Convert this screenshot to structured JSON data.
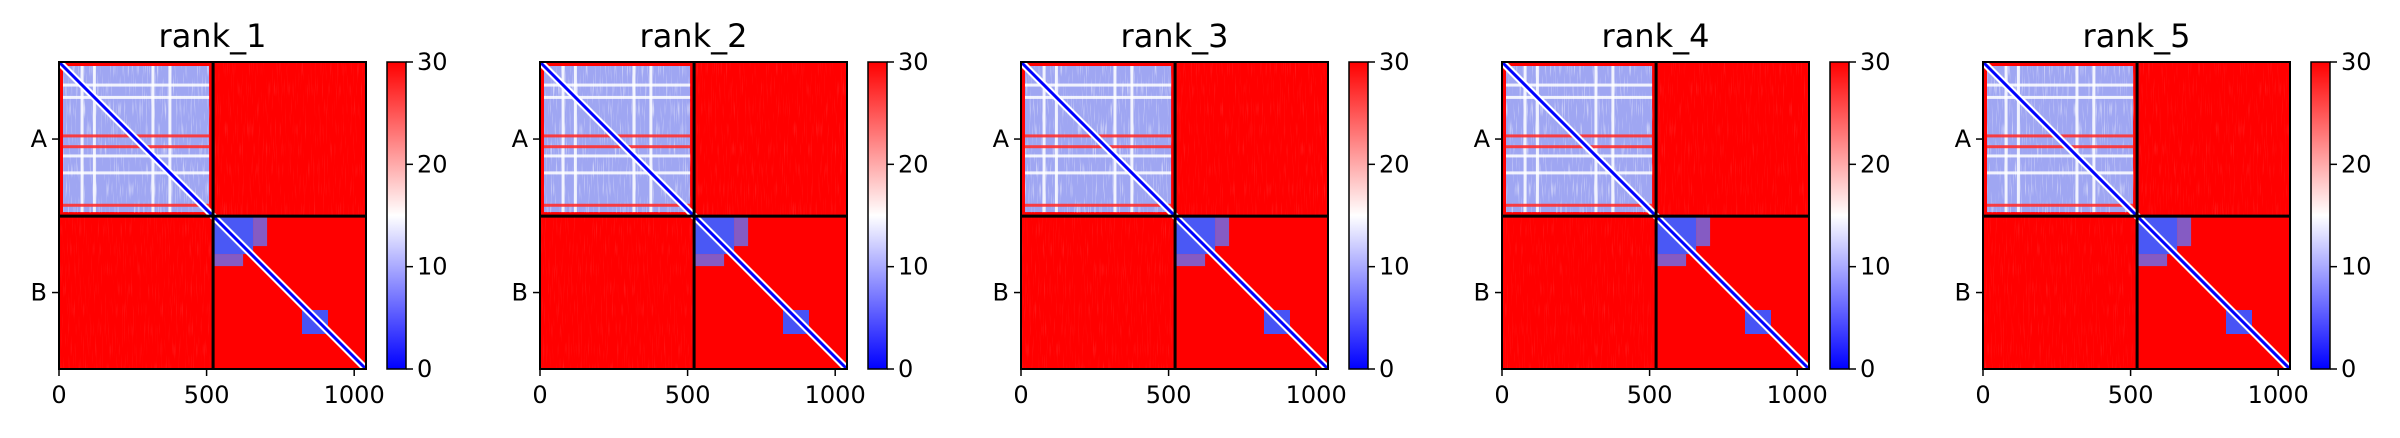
{
  "chart_data": [
    {
      "type": "heatmap",
      "title": "rank_1",
      "x_ticks": [
        0,
        500,
        1000
      ],
      "y_tick_labels": [
        "A",
        "B"
      ],
      "chain_lengths": [
        522,
        518
      ],
      "colorbar": {
        "ticks": [
          0,
          10,
          20,
          30
        ],
        "range": [
          0,
          30
        ],
        "colormap": [
          "#0000ff",
          "#ffffff",
          "#ff0000"
        ]
      },
      "grid": false
    },
    {
      "type": "heatmap",
      "title": "rank_2",
      "x_ticks": [
        0,
        500,
        1000
      ],
      "y_tick_labels": [
        "A",
        "B"
      ],
      "chain_lengths": [
        522,
        518
      ],
      "colorbar": {
        "ticks": [
          0,
          10,
          20,
          30
        ],
        "range": [
          0,
          30
        ],
        "colormap": [
          "#0000ff",
          "#ffffff",
          "#ff0000"
        ]
      },
      "grid": false
    },
    {
      "type": "heatmap",
      "title": "rank_3",
      "x_ticks": [
        0,
        500,
        1000
      ],
      "y_tick_labels": [
        "A",
        "B"
      ],
      "chain_lengths": [
        522,
        518
      ],
      "colorbar": {
        "ticks": [
          0,
          10,
          20,
          30
        ],
        "range": [
          0,
          30
        ],
        "colormap": [
          "#0000ff",
          "#ffffff",
          "#ff0000"
        ]
      },
      "grid": false
    },
    {
      "type": "heatmap",
      "title": "rank_4",
      "x_ticks": [
        0,
        500,
        1000
      ],
      "y_tick_labels": [
        "A",
        "B"
      ],
      "chain_lengths": [
        522,
        518
      ],
      "colorbar": {
        "ticks": [
          0,
          10,
          20,
          30
        ],
        "range": [
          0,
          30
        ],
        "colormap": [
          "#0000ff",
          "#ffffff",
          "#ff0000"
        ]
      },
      "grid": false
    },
    {
      "type": "heatmap",
      "title": "rank_5",
      "x_ticks": [
        0,
        500,
        1000
      ],
      "y_tick_labels": [
        "A",
        "B"
      ],
      "chain_lengths": [
        522,
        518
      ],
      "colorbar": {
        "ticks": [
          0,
          10,
          20,
          30
        ],
        "range": [
          0,
          30
        ],
        "colormap": [
          "#0000ff",
          "#ffffff",
          "#ff0000"
        ]
      },
      "grid": false
    }
  ]
}
